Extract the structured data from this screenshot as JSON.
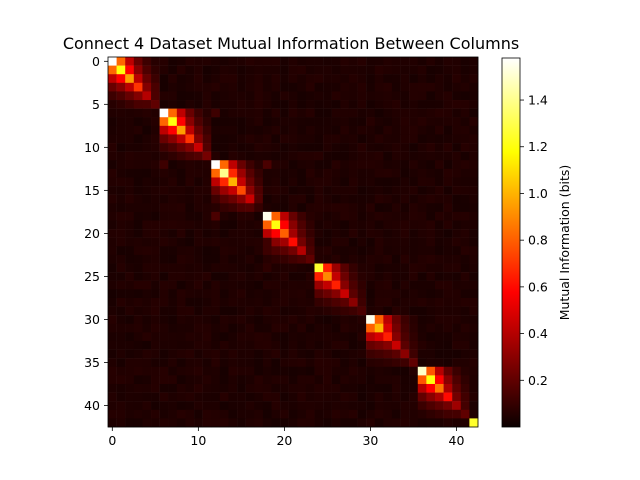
{
  "chart_data": {
    "type": "heatmap",
    "title": "Connect 4 Dataset Mutual Information Between Columns",
    "size": 43,
    "x_ticks": [
      0,
      10,
      20,
      30,
      40
    ],
    "y_ticks": [
      0,
      5,
      10,
      15,
      20,
      25,
      30,
      35,
      40
    ],
    "colormap": "hot",
    "colorbar": {
      "label": "Mutual Information (bits)",
      "range": [
        0.0,
        1.58
      ],
      "ticks": [
        0.2,
        0.4,
        0.6,
        0.8,
        1.0,
        1.2,
        1.4
      ],
      "tick_labels": [
        "0.2",
        "0.4",
        "0.6",
        "0.8",
        "1.0",
        "1.2",
        "1.4"
      ]
    },
    "blocks": [
      {
        "start": 0,
        "size": 6,
        "diag": [
          1.58,
          1.2,
          0.95,
          0.7,
          0.4,
          0.2
        ]
      },
      {
        "start": 6,
        "size": 6,
        "diag": [
          1.58,
          1.2,
          0.95,
          0.7,
          0.45,
          0.25
        ]
      },
      {
        "start": 12,
        "size": 6,
        "diag": [
          1.58,
          1.4,
          1.0,
          0.75,
          0.45,
          0.2
        ]
      },
      {
        "start": 18,
        "size": 6,
        "diag": [
          1.55,
          1.2,
          0.8,
          0.6,
          0.4,
          0.2
        ]
      },
      {
        "start": 24,
        "size": 6,
        "diag": [
          1.25,
          0.9,
          0.65,
          0.45,
          0.3,
          0.15
        ]
      },
      {
        "start": 30,
        "size": 6,
        "diag": [
          1.55,
          1.0,
          0.65,
          0.45,
          0.3,
          0.2
        ]
      },
      {
        "start": 36,
        "size": 6,
        "diag": [
          1.5,
          1.2,
          0.85,
          0.6,
          0.35,
          0.2
        ]
      }
    ],
    "last_cell": {
      "index": 42,
      "value": 1.25
    },
    "scattered_cells": [
      {
        "row": 12,
        "col": 6,
        "value": 0.12
      },
      {
        "row": 6,
        "col": 12,
        "value": 0.12
      },
      {
        "row": 18,
        "col": 12,
        "value": 0.15
      },
      {
        "row": 12,
        "col": 18,
        "value": 0.15
      },
      {
        "row": 21,
        "col": 18,
        "value": 0.12
      },
      {
        "row": 17,
        "col": 17,
        "value": 0.1
      },
      {
        "row": 24,
        "col": 18,
        "value": 0.08
      }
    ],
    "background_value": 0.03
  }
}
